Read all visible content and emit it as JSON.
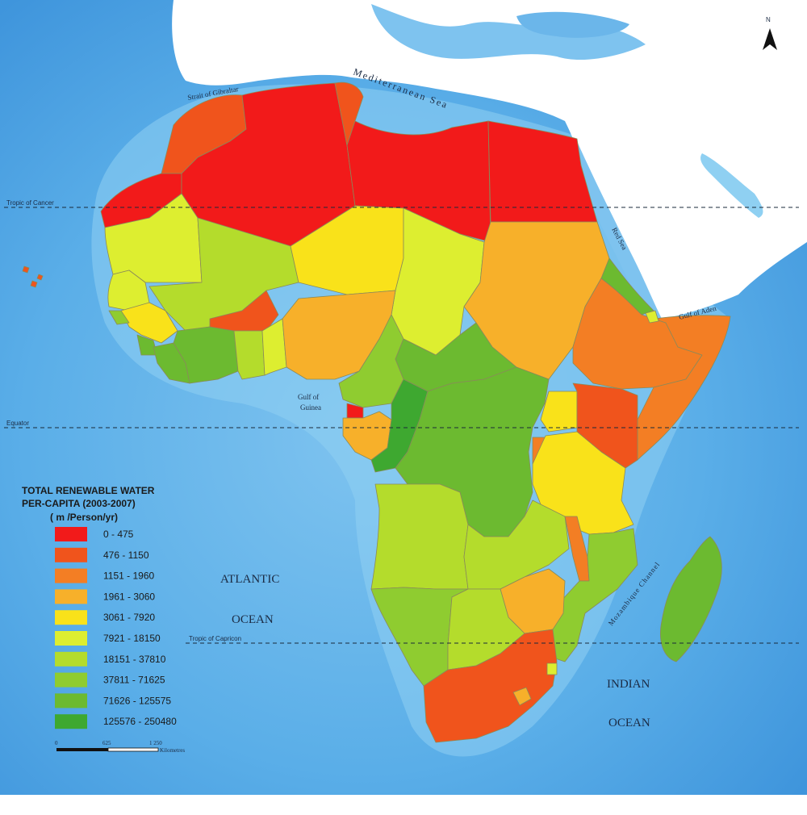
{
  "legend": {
    "title_line1": "TOTAL RENEWABLE WATER",
    "title_line2": "PER-CAPITA (2003-2007)",
    "title_line3": "( m /Person/yr)",
    "classes": [
      {
        "label": "0 - 475",
        "color": "#f21a1a"
      },
      {
        "label": "476 - 1150",
        "color": "#f0541c"
      },
      {
        "label": "1151 - 1960",
        "color": "#f37e24"
      },
      {
        "label": "1961 - 3060",
        "color": "#f7b02a"
      },
      {
        "label": "3061 - 7920",
        "color": "#f9e21a"
      },
      {
        "label": "7921 - 18150",
        "color": "#ddee30"
      },
      {
        "label": "18151 - 37810",
        "color": "#b4dc2c"
      },
      {
        "label": "37811 - 71625",
        "color": "#8fcc30"
      },
      {
        "label": "71626 - 125575",
        "color": "#6cba30"
      },
      {
        "label": "125576 - 250480",
        "color": "#3ea830"
      }
    ]
  },
  "labels": {
    "north": "N",
    "tropic_cancer": "Tropic of Cancer",
    "equator": "Equator",
    "tropic_capricorn": "Tropic of Capricon",
    "mediterranean": "Mediterranean Sea",
    "gibraltar": "Strait of Gibraltar",
    "red_sea": "Red Sea",
    "gulf_aden": "Gulf of Aden",
    "gulf_guinea_1": "Gulf of",
    "gulf_guinea_2": "Guinea",
    "atlantic_1": "ATLANTIC",
    "atlantic_2": "OCEAN",
    "indian_1": "INDIAN",
    "indian_2": "OCEAN",
    "mozambique": "Mozambique Channel"
  },
  "scale": {
    "tick0": "0",
    "tick1": "625",
    "tick2": "1 250",
    "unit": "Kilometres"
  }
}
